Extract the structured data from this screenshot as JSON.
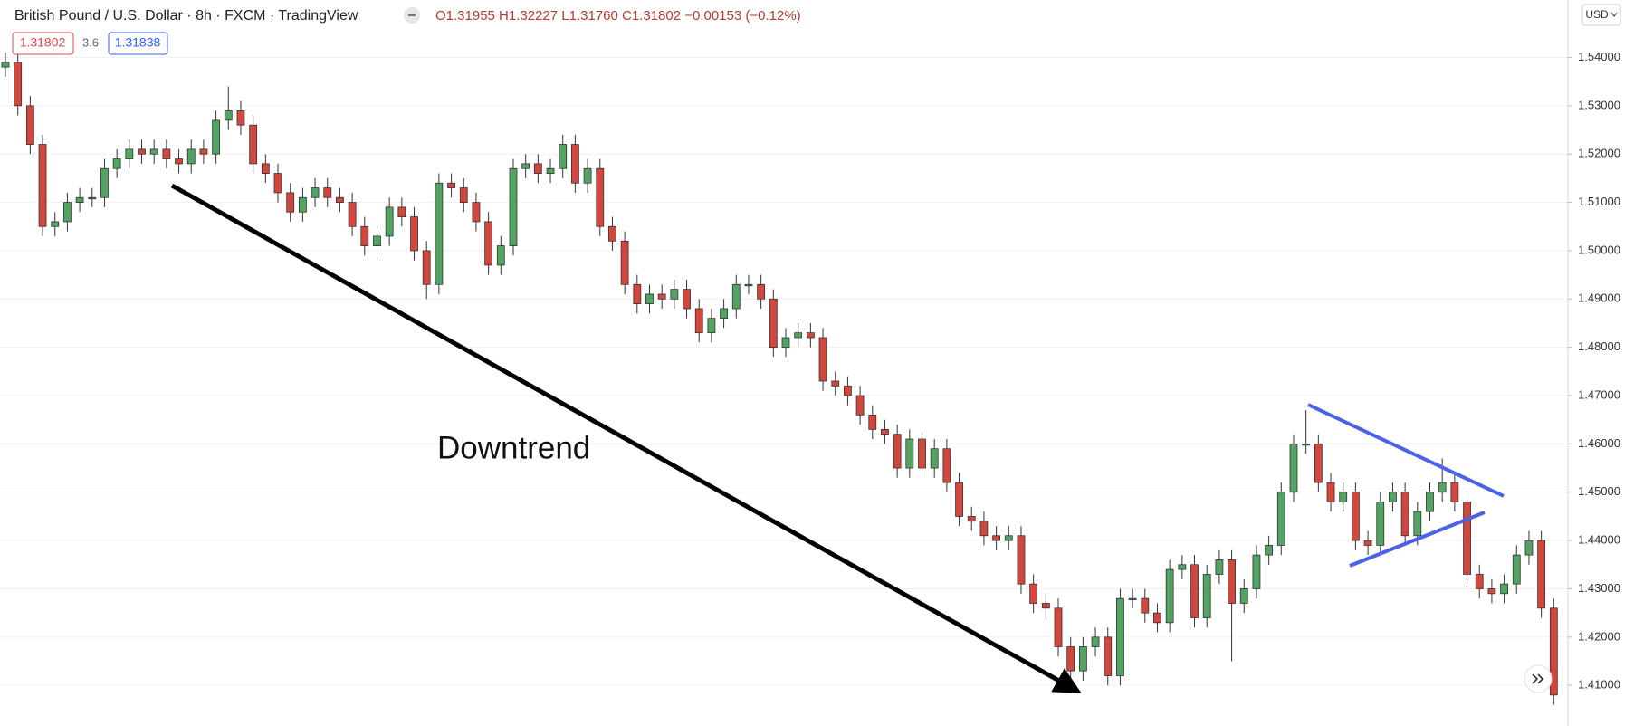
{
  "header": {
    "title": "British Pound / U.S. Dollar · 8h · FXCM · TradingView",
    "ohlc": "O1.31955 H1.32227 L1.31760 C1.31802 −0.00153 (−0.12%)",
    "sell": "1.31802",
    "spread": "3.6",
    "buy": "1.31838",
    "currency": "USD"
  },
  "chart_data": {
    "type": "candlestick",
    "annotation": "Downtrend",
    "up_color": "#53a463",
    "down_color": "#d2473d",
    "ylim": [
      1.4016,
      1.5519
    ],
    "yticks": [
      {
        "value": 1.41,
        "label": "1.41000"
      },
      {
        "value": 1.42,
        "label": "1.42000"
      },
      {
        "value": 1.43,
        "label": "1.43000"
      },
      {
        "value": 1.44,
        "label": "1.44000"
      },
      {
        "value": 1.45,
        "label": "1.45000"
      },
      {
        "value": 1.46,
        "label": "1.46000"
      },
      {
        "value": 1.47,
        "label": "1.47000"
      },
      {
        "value": 1.48,
        "label": "1.48000"
      },
      {
        "value": 1.49,
        "label": "1.49000"
      },
      {
        "value": 1.5,
        "label": "1.50000"
      },
      {
        "value": 1.51,
        "label": "1.51000"
      },
      {
        "value": 1.52,
        "label": "1.52000"
      },
      {
        "value": 1.53,
        "label": "1.53000"
      },
      {
        "value": 1.54,
        "label": "1.54000"
      }
    ],
    "grid": true,
    "open": [
      1.538,
      1.539,
      1.53,
      1.522,
      1.505,
      1.506,
      1.51,
      1.511,
      1.511,
      1.517,
      1.519,
      1.521,
      1.52,
      1.521,
      1.519,
      1.518,
      1.521,
      1.52,
      1.527,
      1.529,
      1.526,
      1.518,
      1.516,
      1.512,
      1.508,
      1.511,
      1.513,
      1.511,
      1.51,
      1.505,
      1.501,
      1.503,
      1.509,
      1.507,
      1.5,
      1.493,
      1.514,
      1.513,
      1.51,
      1.506,
      1.497,
      1.501,
      1.517,
      1.518,
      1.516,
      1.517,
      1.522,
      1.514,
      1.517,
      1.505,
      1.502,
      1.493,
      1.489,
      1.491,
      1.49,
      1.492,
      1.488,
      1.483,
      1.486,
      1.488,
      1.493,
      1.493,
      1.49,
      1.48,
      1.482,
      1.483,
      1.482,
      1.473,
      1.472,
      1.47,
      1.466,
      1.463,
      1.462,
      1.455,
      1.461,
      1.455,
      1.459,
      1.452,
      1.445,
      1.444,
      1.441,
      1.44,
      1.441,
      1.431,
      1.427,
      1.426,
      1.418,
      1.413,
      1.418,
      1.42,
      1.412,
      1.428,
      1.428,
      1.425,
      1.423,
      1.434,
      1.435,
      1.424,
      1.433,
      1.436,
      1.427,
      1.43,
      1.437,
      1.439,
      1.45,
      1.46,
      1.46,
      1.452,
      1.448,
      1.45,
      1.44,
      1.439,
      1.448,
      1.45,
      1.441,
      1.446,
      1.45,
      1.452,
      1.448,
      1.433,
      1.43,
      1.429,
      1.431,
      1.437,
      1.44,
      1.426
    ],
    "high": [
      1.541,
      1.541,
      1.532,
      1.524,
      1.508,
      1.512,
      1.513,
      1.513,
      1.519,
      1.521,
      1.523,
      1.523,
      1.523,
      1.523,
      1.521,
      1.523,
      1.523,
      1.529,
      1.534,
      1.531,
      1.528,
      1.52,
      1.518,
      1.514,
      1.513,
      1.515,
      1.515,
      1.513,
      1.512,
      1.507,
      1.505,
      1.511,
      1.511,
      1.509,
      1.502,
      1.516,
      1.516,
      1.515,
      1.512,
      1.508,
      1.503,
      1.519,
      1.52,
      1.52,
      1.519,
      1.524,
      1.524,
      1.519,
      1.519,
      1.507,
      1.504,
      1.495,
      1.493,
      1.493,
      1.494,
      1.494,
      1.49,
      1.488,
      1.49,
      1.495,
      1.495,
      1.495,
      1.492,
      1.484,
      1.485,
      1.485,
      1.484,
      1.475,
      1.474,
      1.472,
      1.468,
      1.465,
      1.464,
      1.463,
      1.463,
      1.461,
      1.461,
      1.454,
      1.447,
      1.446,
      1.443,
      1.443,
      1.443,
      1.433,
      1.429,
      1.428,
      1.42,
      1.42,
      1.422,
      1.422,
      1.43,
      1.43,
      1.43,
      1.427,
      1.436,
      1.437,
      1.437,
      1.435,
      1.438,
      1.438,
      1.432,
      1.439,
      1.441,
      1.452,
      1.462,
      1.467,
      1.462,
      1.454,
      1.452,
      1.452,
      1.442,
      1.45,
      1.452,
      1.452,
      1.448,
      1.452,
      1.457,
      1.454,
      1.45,
      1.435,
      1.432,
      1.433,
      1.439,
      1.442,
      1.442,
      1.428
    ],
    "low": [
      1.536,
      1.528,
      1.52,
      1.503,
      1.503,
      1.504,
      1.508,
      1.509,
      1.509,
      1.515,
      1.517,
      1.518,
      1.518,
      1.517,
      1.516,
      1.516,
      1.518,
      1.518,
      1.525,
      1.524,
      1.516,
      1.514,
      1.51,
      1.506,
      1.506,
      1.509,
      1.509,
      1.508,
      1.503,
      1.499,
      1.499,
      1.501,
      1.505,
      1.498,
      1.49,
      1.491,
      1.511,
      1.508,
      1.504,
      1.495,
      1.495,
      1.499,
      1.515,
      1.514,
      1.514,
      1.515,
      1.512,
      1.512,
      1.503,
      1.5,
      1.491,
      1.487,
      1.487,
      1.488,
      1.488,
      1.486,
      1.481,
      1.481,
      1.484,
      1.486,
      1.491,
      1.488,
      1.478,
      1.478,
      1.48,
      1.48,
      1.471,
      1.47,
      1.468,
      1.464,
      1.461,
      1.46,
      1.453,
      1.453,
      1.453,
      1.453,
      1.45,
      1.443,
      1.442,
      1.439,
      1.438,
      1.438,
      1.429,
      1.425,
      1.424,
      1.416,
      1.411,
      1.411,
      1.416,
      1.41,
      1.41,
      1.426,
      1.423,
      1.421,
      1.421,
      1.432,
      1.422,
      1.422,
      1.431,
      1.415,
      1.425,
      1.428,
      1.435,
      1.437,
      1.448,
      1.458,
      1.45,
      1.446,
      1.446,
      1.438,
      1.437,
      1.437,
      1.446,
      1.439,
      1.439,
      1.444,
      1.448,
      1.446,
      1.431,
      1.428,
      1.427,
      1.427,
      1.429,
      1.435,
      1.424,
      1.406
    ],
    "close": [
      1.539,
      1.53,
      1.522,
      1.505,
      1.506,
      1.51,
      1.511,
      1.511,
      1.517,
      1.519,
      1.521,
      1.52,
      1.521,
      1.519,
      1.518,
      1.521,
      1.52,
      1.527,
      1.529,
      1.526,
      1.518,
      1.516,
      1.512,
      1.508,
      1.511,
      1.513,
      1.511,
      1.51,
      1.505,
      1.501,
      1.503,
      1.509,
      1.507,
      1.5,
      1.493,
      1.514,
      1.513,
      1.51,
      1.506,
      1.497,
      1.501,
      1.517,
      1.518,
      1.516,
      1.517,
      1.522,
      1.514,
      1.517,
      1.505,
      1.502,
      1.493,
      1.489,
      1.491,
      1.49,
      1.492,
      1.488,
      1.483,
      1.486,
      1.488,
      1.493,
      1.493,
      1.49,
      1.48,
      1.482,
      1.483,
      1.482,
      1.473,
      1.472,
      1.47,
      1.466,
      1.463,
      1.462,
      1.455,
      1.461,
      1.455,
      1.459,
      1.452,
      1.445,
      1.444,
      1.441,
      1.44,
      1.441,
      1.431,
      1.427,
      1.426,
      1.418,
      1.413,
      1.418,
      1.42,
      1.412,
      1.428,
      1.428,
      1.425,
      1.423,
      1.434,
      1.435,
      1.424,
      1.433,
      1.436,
      1.427,
      1.43,
      1.437,
      1.439,
      1.45,
      1.46,
      1.46,
      1.452,
      1.448,
      1.45,
      1.44,
      1.439,
      1.448,
      1.45,
      1.441,
      1.446,
      1.45,
      1.452,
      1.448,
      1.433,
      1.43,
      1.429,
      1.431,
      1.437,
      1.44,
      1.426,
      1.408
    ]
  }
}
